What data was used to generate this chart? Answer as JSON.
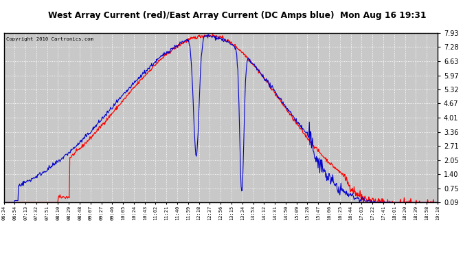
{
  "title": "West Array Current (red)/East Array Current (DC Amps blue)  Mon Aug 16 19:31",
  "copyright": "Copyright 2010 Cartronics.com",
  "y_ticks": [
    0.09,
    0.75,
    1.4,
    2.05,
    2.71,
    3.36,
    4.01,
    4.67,
    5.32,
    5.97,
    6.63,
    7.28,
    7.93
  ],
  "ymin": 0.09,
  "ymax": 7.93,
  "x_labels": [
    "06:34",
    "06:54",
    "07:13",
    "07:32",
    "07:51",
    "08:10",
    "08:29",
    "08:48",
    "09:07",
    "09:27",
    "09:46",
    "10:05",
    "10:24",
    "10:43",
    "11:02",
    "11:21",
    "11:40",
    "11:59",
    "12:18",
    "12:37",
    "12:56",
    "13:15",
    "13:34",
    "13:53",
    "14:12",
    "14:31",
    "14:50",
    "15:09",
    "15:28",
    "15:47",
    "16:06",
    "16:25",
    "16:44",
    "17:03",
    "17:22",
    "17:41",
    "18:01",
    "18:20",
    "18:39",
    "18:58",
    "19:18"
  ],
  "plot_bg": "#c8c8c8",
  "grid_color": "#ffffff",
  "red_color": "#ff0000",
  "blue_color": "#0000cc",
  "title_bg": "#b8b8b8",
  "fig_bg": "#ffffff"
}
